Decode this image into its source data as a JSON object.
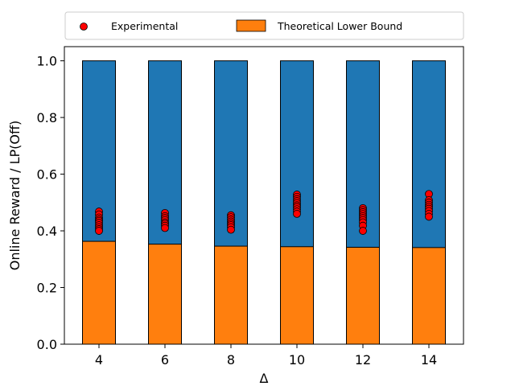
{
  "chart_data": {
    "type": "bar",
    "categories": [
      "4",
      "6",
      "8",
      "10",
      "12",
      "14"
    ],
    "xlabel": "Δ",
    "ylabel": "Online Reward / LP(Off)",
    "ylim": [
      0,
      1.05
    ],
    "yticks": [
      "0.0",
      "0.2",
      "0.4",
      "0.6",
      "0.8",
      "1.0"
    ],
    "legend_placement": "top-center, outside",
    "series": [
      {
        "name": "Theoretical Lower Bound",
        "kind": "bar",
        "color": "#ff7f0e",
        "values": [
          0.363,
          0.353,
          0.346,
          0.344,
          0.342,
          0.341
        ]
      },
      {
        "name": "",
        "kind": "bar",
        "color": "#1f77b4",
        "values": [
          1.0,
          1.0,
          1.0,
          1.0,
          1.0,
          1.0
        ]
      },
      {
        "name": "Experimental",
        "kind": "scatter",
        "color": "#ff0000",
        "points": [
          [
            0.468,
            0.458,
            0.447,
            0.44,
            0.435,
            0.428,
            0.42,
            0.413,
            0.406,
            0.4
          ],
          [
            0.463,
            0.452,
            0.445,
            0.438,
            0.43,
            0.425,
            0.418,
            0.41
          ],
          [
            0.455,
            0.448,
            0.44,
            0.433,
            0.426,
            0.42,
            0.413,
            0.404
          ],
          [
            0.528,
            0.52,
            0.512,
            0.505,
            0.498,
            0.49,
            0.484,
            0.476,
            0.468,
            0.46
          ],
          [
            0.48,
            0.473,
            0.466,
            0.459,
            0.452,
            0.445,
            0.438,
            0.43,
            0.418,
            0.4
          ],
          [
            0.53,
            0.508,
            0.5,
            0.492,
            0.485,
            0.478,
            0.47,
            0.46,
            0.45
          ]
        ]
      }
    ]
  }
}
